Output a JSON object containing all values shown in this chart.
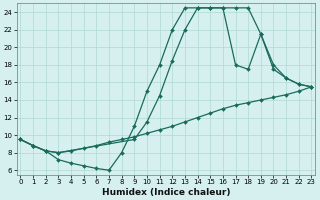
{
  "xlabel": "Humidex (Indice chaleur)",
  "bg_color": "#d6f0f0",
  "line_color": "#1a6b5a",
  "xlim": [
    -0.3,
    23.3
  ],
  "ylim": [
    5.5,
    25.0
  ],
  "xticks": [
    0,
    1,
    2,
    3,
    4,
    5,
    6,
    7,
    8,
    9,
    10,
    11,
    12,
    13,
    14,
    15,
    16,
    17,
    18,
    19,
    20,
    21,
    22,
    23
  ],
  "yticks": [
    6,
    8,
    10,
    12,
    14,
    16,
    18,
    20,
    22,
    24
  ],
  "grid_color": "#b0d8d0",
  "line1_x": [
    0,
    1,
    2,
    3,
    4,
    5,
    6,
    7,
    8,
    9,
    10,
    11,
    12,
    13,
    14,
    15,
    16,
    17,
    18,
    19,
    20,
    21,
    22,
    23
  ],
  "line1_y": [
    9.5,
    8.8,
    8.2,
    8.0,
    8.2,
    8.5,
    8.8,
    9.2,
    9.5,
    9.8,
    10.2,
    10.6,
    11.0,
    11.5,
    12.0,
    12.5,
    13.0,
    13.4,
    13.7,
    14.0,
    14.3,
    14.6,
    15.0,
    15.5
  ],
  "line2_x": [
    0,
    1,
    2,
    3,
    4,
    5,
    6,
    7,
    8,
    9,
    10,
    11,
    12,
    13,
    14,
    15,
    16,
    17,
    18,
    19,
    20,
    21,
    22,
    23
  ],
  "line2_y": [
    9.5,
    8.8,
    8.2,
    7.2,
    6.8,
    6.5,
    6.2,
    6.0,
    8.0,
    11.0,
    15.0,
    18.0,
    22.0,
    24.5,
    24.5,
    24.5,
    24.5,
    18.0,
    17.5,
    21.5,
    18.0,
    16.5,
    15.8,
    15.5
  ],
  "line3_x": [
    0,
    1,
    2,
    3,
    9,
    10,
    11,
    12,
    13,
    14,
    15,
    16,
    17,
    18,
    19,
    20,
    21,
    22,
    23
  ],
  "line3_y": [
    9.5,
    8.8,
    8.2,
    8.0,
    9.5,
    11.5,
    14.5,
    18.5,
    22.0,
    24.5,
    24.5,
    24.5,
    24.5,
    24.5,
    21.5,
    17.5,
    16.5,
    15.8,
    15.5
  ]
}
